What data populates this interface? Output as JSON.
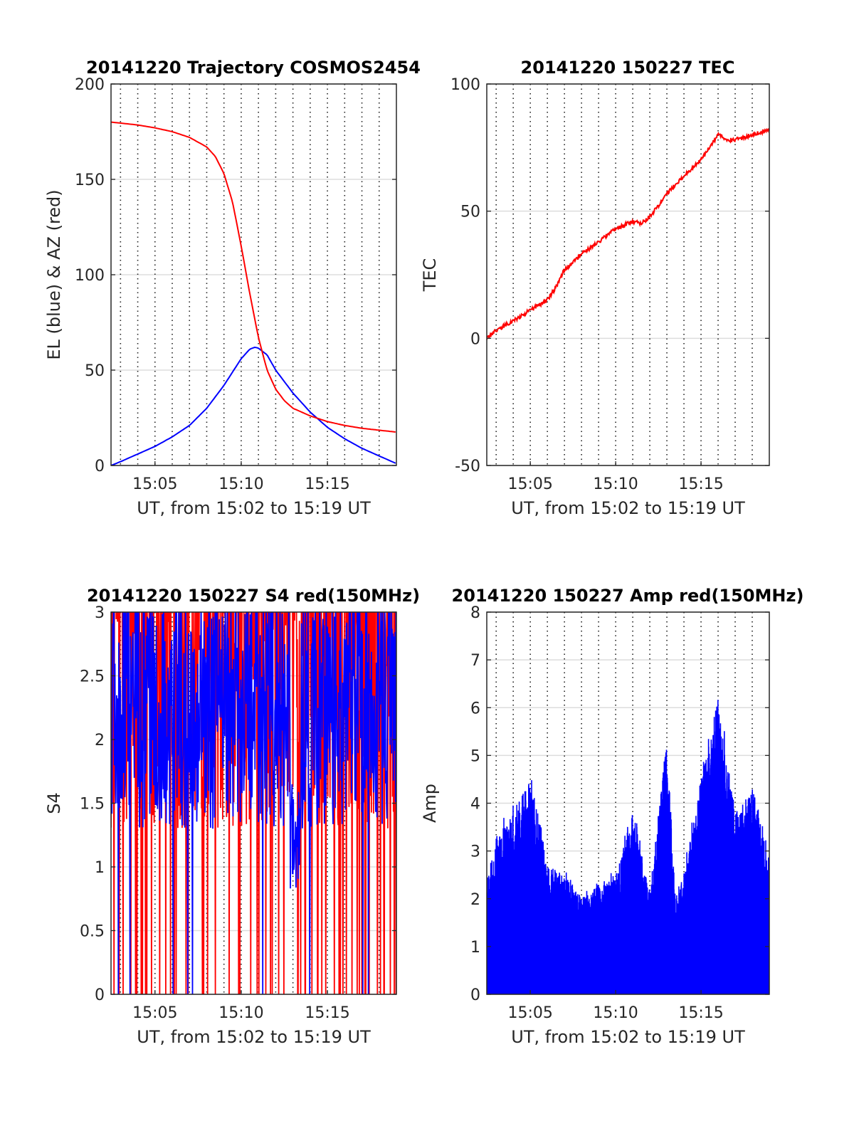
{
  "chart_data": [
    {
      "type": "line",
      "title": "20141220 Trajectory COSMOS2454",
      "xlabel": "UT, from 15:02 to 15:19 UT",
      "ylabel": "EL (blue) & AZ (red)",
      "xlim": [
        "15:02:27",
        "15:19:00"
      ],
      "ylim": [
        0,
        200
      ],
      "yticks": [
        "0",
        "50",
        "100",
        "150",
        "200"
      ],
      "xticks": [
        "15:05",
        "15:10",
        "15:15"
      ],
      "grid": "dotted vertical each minute, light horizontal",
      "series": [
        {
          "name": "EL",
          "color": "#0000ff",
          "x": [
            "15:02:27",
            "15:03:00",
            "15:04:00",
            "15:05:00",
            "15:06:00",
            "15:07:00",
            "15:08:00",
            "15:09:00",
            "15:10:00",
            "15:10:30",
            "15:10:48",
            "15:11:00",
            "15:11:30",
            "15:12:00",
            "15:13:00",
            "15:14:00",
            "15:15:00",
            "15:16:00",
            "15:17:00",
            "15:18:00",
            "15:19:00"
          ],
          "y": [
            0,
            2,
            6,
            10,
            15,
            21,
            30,
            42,
            56,
            61,
            62,
            61.5,
            58,
            50,
            38,
            28,
            20,
            14,
            9,
            5,
            1
          ]
        },
        {
          "name": "AZ",
          "color": "#ff0000",
          "x": [
            "15:02:27",
            "15:03:00",
            "15:04:00",
            "15:05:00",
            "15:06:00",
            "15:07:00",
            "15:08:00",
            "15:08:30",
            "15:09:00",
            "15:09:30",
            "15:10:00",
            "15:10:30",
            "15:11:00",
            "15:11:30",
            "15:12:00",
            "15:12:30",
            "15:13:00",
            "15:14:00",
            "15:15:00",
            "15:16:00",
            "15:17:00",
            "15:18:00",
            "15:19:00"
          ],
          "y": [
            180,
            179.5,
            178.5,
            177,
            175,
            172,
            167,
            162,
            153,
            138,
            115,
            90,
            67,
            50,
            40,
            34,
            30,
            26,
            23,
            21,
            19.5,
            18.5,
            17.5
          ]
        }
      ]
    },
    {
      "type": "line",
      "title": "20141220 150227 TEC",
      "xlabel": "UT, from 15:02 to 15:19 UT",
      "ylabel": "TEC",
      "xlim": [
        "15:02:27",
        "15:19:00"
      ],
      "ylim": [
        -50,
        100
      ],
      "yticks": [
        "-50",
        "0",
        "50",
        "100"
      ],
      "xticks": [
        "15:05",
        "15:10",
        "15:15"
      ],
      "series": [
        {
          "name": "TEC",
          "color": "#ff0000",
          "x": [
            "15:02:27",
            "15:03:00",
            "15:04:00",
            "15:05:00",
            "15:06:00",
            "15:06:30",
            "15:07:00",
            "15:08:00",
            "15:09:00",
            "15:10:00",
            "15:11:00",
            "15:11:30",
            "15:12:00",
            "15:12:30",
            "15:13:00",
            "15:14:00",
            "15:15:00",
            "15:15:30",
            "15:16:00",
            "15:16:30",
            "15:17:00",
            "15:18:00",
            "15:19:00"
          ],
          "y": [
            0,
            3,
            7,
            11,
            15,
            20,
            27,
            33,
            38,
            43,
            46,
            45,
            48,
            52,
            57,
            64,
            70,
            75,
            80,
            78,
            78,
            80,
            82
          ]
        }
      ]
    },
    {
      "type": "line",
      "title": "20141220 150227 S4 red(150MHz)",
      "xlabel": "UT, from 15:02 to 15:19 UT",
      "ylabel": "S4",
      "xlim": [
        "15:02:27",
        "15:19:00"
      ],
      "ylim": [
        0,
        3
      ],
      "yticks": [
        "0",
        "0.5",
        "1",
        "1.5",
        "2",
        "2.5",
        "3"
      ],
      "xticks": [
        "15:05",
        "15:10",
        "15:15"
      ],
      "series": [
        {
          "name": "S4 red",
          "color": "#ff0000",
          "style": "noisy, frequent drops to 0, 15:02:27-15:19:00",
          "typical_range": [
            0,
            3
          ]
        },
        {
          "name": "S4 blue",
          "color": "#0000ff",
          "style": "noisy, mostly 1.3-3, dip to 0.8 near 15:13",
          "typical_range": [
            1.2,
            3
          ]
        }
      ]
    },
    {
      "type": "bar",
      "title": "20141220 150227 Amp red(150MHz)",
      "xlabel": "UT, from 15:02 to 15:19 UT",
      "ylabel": "Amp",
      "xlim": [
        "15:02:27",
        "15:19:00"
      ],
      "ylim": [
        0,
        8
      ],
      "yticks": [
        "0",
        "1",
        "2",
        "3",
        "4",
        "5",
        "6",
        "7",
        "8"
      ],
      "xticks": [
        "15:05",
        "15:10",
        "15:15"
      ],
      "series": [
        {
          "name": "Amp",
          "color": "#0000ff",
          "style": "dense vertical spikes from 0",
          "x": [
            "15:02:27",
            "15:03:00",
            "15:04:00",
            "15:05:00",
            "15:06:00",
            "15:07:00",
            "15:08:00",
            "15:09:00",
            "15:10:00",
            "15:11:00",
            "15:12:00",
            "15:13:00",
            "15:13:30",
            "15:14:00",
            "15:15:00",
            "15:16:00",
            "15:17:00",
            "15:18:00",
            "15:19:00"
          ],
          "y_envelope": [
            2.3,
            3.3,
            3.8,
            4.5,
            2.7,
            2.5,
            2.0,
            2.3,
            2.5,
            3.8,
            2.2,
            5.4,
            2.0,
            2.5,
            4.5,
            6.2,
            3.8,
            4.3,
            2.8
          ]
        }
      ]
    }
  ]
}
